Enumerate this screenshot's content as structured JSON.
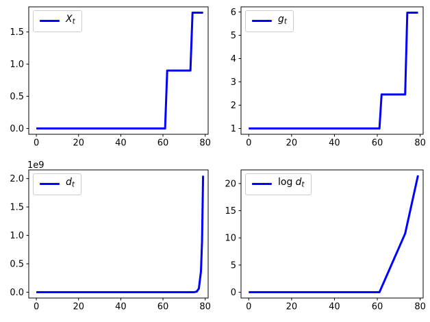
{
  "figure": {
    "background": "#ffffff",
    "line_color": "#0000ff",
    "axis_color": "#000000",
    "tick_label_color": "#000000",
    "legend_border_color": "#cccccc"
  },
  "chart_data": [
    {
      "position": "top-left",
      "type": "line",
      "title": "",
      "xlabel": "",
      "ylabel": "",
      "legend": {
        "prefix": "",
        "var": "X",
        "sub": "t"
      },
      "legend_position": "upper-left",
      "grid": false,
      "xlim": [
        -3.6,
        81.4
      ],
      "ylim": [
        -0.09,
        1.89
      ],
      "xticks": {
        "values": [
          0,
          20,
          40,
          60,
          80
        ],
        "labels": [
          "0",
          "20",
          "40",
          "60",
          "80"
        ]
      },
      "yticks": {
        "values": [
          0.0,
          0.5,
          1.0,
          1.5
        ],
        "labels": [
          "0.0",
          "0.5",
          "1.0",
          "1.5"
        ]
      },
      "offset_text": "",
      "points": [
        [
          0,
          0
        ],
        [
          61,
          0
        ],
        [
          62,
          0.9
        ],
        [
          73,
          0.9
        ],
        [
          74,
          1.8
        ],
        [
          79,
          1.8
        ]
      ]
    },
    {
      "position": "top-right",
      "type": "line",
      "title": "",
      "xlabel": "",
      "ylabel": "",
      "legend": {
        "prefix": "",
        "var": "g",
        "sub": "t"
      },
      "legend_position": "upper-left",
      "grid": false,
      "xlim": [
        -3.6,
        81.4
      ],
      "ylim": [
        0.75,
        6.22
      ],
      "xticks": {
        "values": [
          0,
          20,
          40,
          60,
          80
        ],
        "labels": [
          "0",
          "20",
          "40",
          "60",
          "80"
        ]
      },
      "yticks": {
        "values": [
          1,
          2,
          3,
          4,
          5,
          6
        ],
        "labels": [
          "1",
          "2",
          "3",
          "4",
          "5",
          "6"
        ]
      },
      "offset_text": "",
      "points": [
        [
          0,
          1
        ],
        [
          61,
          1
        ],
        [
          62,
          2.46
        ],
        [
          73,
          2.46
        ],
        [
          74,
          5.97
        ],
        [
          79,
          5.97
        ]
      ]
    },
    {
      "position": "bottom-left",
      "type": "line",
      "title": "",
      "xlabel": "",
      "ylabel": "",
      "legend": {
        "prefix": "",
        "var": "d",
        "sub": "t"
      },
      "legend_position": "upper-left",
      "grid": false,
      "xlim": [
        -3.6,
        81.4
      ],
      "ylim": [
        -102500000,
        2152500000
      ],
      "xticks": {
        "values": [
          0,
          20,
          40,
          60,
          80
        ],
        "labels": [
          "0",
          "20",
          "40",
          "60",
          "80"
        ]
      },
      "yticks": {
        "values": [
          0,
          500000000,
          1000000000,
          1500000000,
          2000000000
        ],
        "labels": [
          "0.0",
          "0.5",
          "1.0",
          "1.5",
          "2.0"
        ]
      },
      "offset_text": "1e9",
      "points": [
        [
          0,
          1
        ],
        [
          61,
          1
        ],
        [
          64,
          15
        ],
        [
          67,
          230
        ],
        [
          70,
          3300
        ],
        [
          72,
          16500
        ],
        [
          73,
          49000
        ],
        [
          74,
          297000
        ],
        [
          75,
          1800000
        ],
        [
          76,
          10800000
        ],
        [
          77,
          66000000
        ],
        [
          78,
          368000000
        ],
        [
          78.5,
          890000000
        ],
        [
          79,
          2050000000
        ]
      ]
    },
    {
      "position": "bottom-right",
      "type": "line",
      "title": "",
      "xlabel": "",
      "ylabel": "",
      "legend": {
        "prefix": "log",
        "var": "d",
        "sub": "t"
      },
      "legend_position": "upper-left",
      "grid": false,
      "xlim": [
        -3.6,
        81.4
      ],
      "ylim": [
        -1.07,
        22.51
      ],
      "xticks": {
        "values": [
          0,
          20,
          40,
          60,
          80
        ],
        "labels": [
          "0",
          "20",
          "40",
          "60",
          "80"
        ]
      },
      "yticks": {
        "values": [
          0,
          5,
          10,
          15,
          20
        ],
        "labels": [
          "0",
          "5",
          "10",
          "15",
          "20"
        ]
      },
      "offset_text": "",
      "points": [
        [
          0,
          0
        ],
        [
          61,
          0
        ],
        [
          62,
          0.9
        ],
        [
          73,
          10.8
        ],
        [
          74,
          12.58
        ],
        [
          79,
          21.5
        ]
      ]
    }
  ]
}
